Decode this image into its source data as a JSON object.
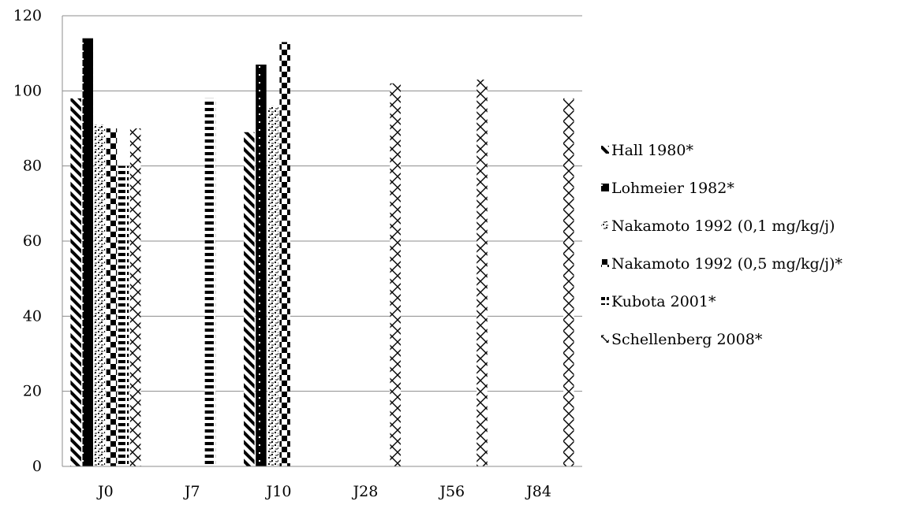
{
  "chart_data": {
    "type": "bar",
    "title": "",
    "xlabel": "",
    "ylabel": "",
    "ylim": [
      0,
      120
    ],
    "yticks": [
      0,
      20,
      40,
      60,
      80,
      100,
      120
    ],
    "grid": true,
    "legend_position": "right",
    "categories": [
      "J0",
      "J7",
      "J10",
      "J28",
      "J56",
      "J84"
    ],
    "series": [
      {
        "name": "Hall 1980*",
        "pattern": "diagonal-stripes",
        "values": [
          98,
          null,
          89,
          null,
          null,
          null
        ]
      },
      {
        "name": "Lohmeier 1982*",
        "pattern": "solid-dotted",
        "values": [
          114,
          null,
          107,
          null,
          null,
          null
        ]
      },
      {
        "name": "Nakamoto 1992 (0,1 mg/kg/j)",
        "pattern": "light-checker",
        "values": [
          91,
          null,
          96,
          null,
          null,
          null
        ]
      },
      {
        "name": "Nakamoto 1992 (0,5 mg/kg/j)*",
        "pattern": "checkerboard",
        "values": [
          90,
          null,
          113,
          null,
          null,
          null
        ]
      },
      {
        "name": "Kubota 2001*",
        "pattern": "horizontal-dashes",
        "values": [
          80,
          98,
          null,
          null,
          null,
          null
        ]
      },
      {
        "name": "Schellenberg 2008*",
        "pattern": "zigzag",
        "values": [
          90,
          null,
          null,
          102,
          103,
          98
        ]
      }
    ]
  }
}
